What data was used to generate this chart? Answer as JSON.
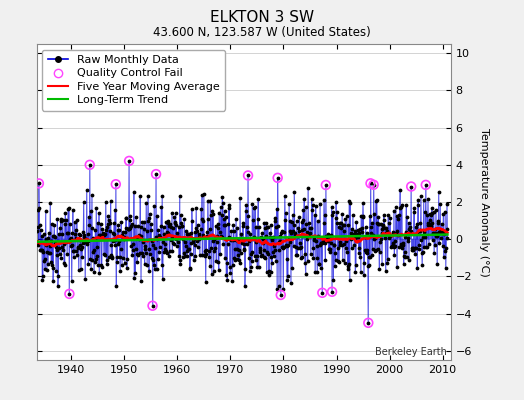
{
  "title": "ELKTON 3 SW",
  "subtitle": "43.600 N, 123.587 W (United States)",
  "ylabel": "Temperature Anomaly (°C)",
  "watermark": "Berkeley Earth",
  "xlim": [
    1933.5,
    2011.5
  ],
  "ylim": [
    -6.5,
    10.5
  ],
  "yticks": [
    -6,
    -4,
    -2,
    0,
    2,
    4,
    6,
    8,
    10
  ],
  "xticks": [
    1940,
    1950,
    1960,
    1970,
    1980,
    1990,
    2000,
    2010
  ],
  "seed": 42,
  "start_year": 1933.5,
  "end_year": 2010.9,
  "n_months": 930,
  "moving_avg_window": 60,
  "raw_color": "#0000dd",
  "ma_color": "#ff0000",
  "trend_color": "#00bb00",
  "qc_color": "#ff44ff",
  "background_color": "#f0f0f0",
  "plot_bg_color": "#ffffff",
  "grid_color": "#cccccc",
  "legend_fontsize": 8,
  "title_fontsize": 11,
  "subtitle_fontsize": 8.5
}
